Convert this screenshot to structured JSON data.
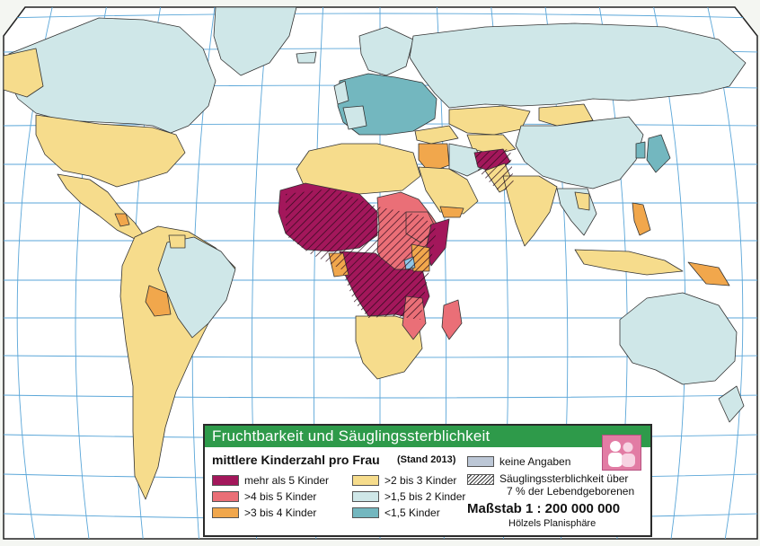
{
  "colors": {
    "ocean": "#ffffff",
    "grid": "#5aa6d8",
    "border": "#333333",
    "mehr_als_5": "#a3175b",
    "4_bis_5": "#ea6f77",
    "3_bis_4": "#f1a74c",
    "2_bis_3": "#f6dc8c",
    "1_5_bis_2": "#cfe7e8",
    "unter_1_5": "#73b7bf",
    "keine": "#bcc7d6",
    "header_green": "#2e9a4a"
  },
  "legend": {
    "header": "Fruchtbarkeit und Säuglingssterblichkeit",
    "subtitle": "mittlere Kinderzahl pro Frau",
    "stand": "(Stand 2013)",
    "items_left": [
      {
        "label": "mehr als 5 Kinder",
        "color": "#a3175b"
      },
      {
        "label": ">4 bis 5 Kinder",
        "color": "#ea6f77"
      },
      {
        "label": ">3 bis 4 Kinder",
        "color": "#f1a74c"
      }
    ],
    "items_mid": [
      {
        "label": ">2 bis 3 Kinder",
        "color": "#f6dc8c"
      },
      {
        "label": ">1,5 bis 2 Kinder",
        "color": "#cfe7e8"
      },
      {
        "label": "<1,5 Kinder",
        "color": "#73b7bf"
      }
    ],
    "keine_angaben": "keine Angaben",
    "hatch_label_1": "Säuglingssterblichkeit über",
    "hatch_label_2": "7 % der Lebendgeborenen",
    "scale": "Maßstab 1 : 200 000 000",
    "projection": "Hölzels Planisphäre",
    "icon": "people-icon"
  }
}
